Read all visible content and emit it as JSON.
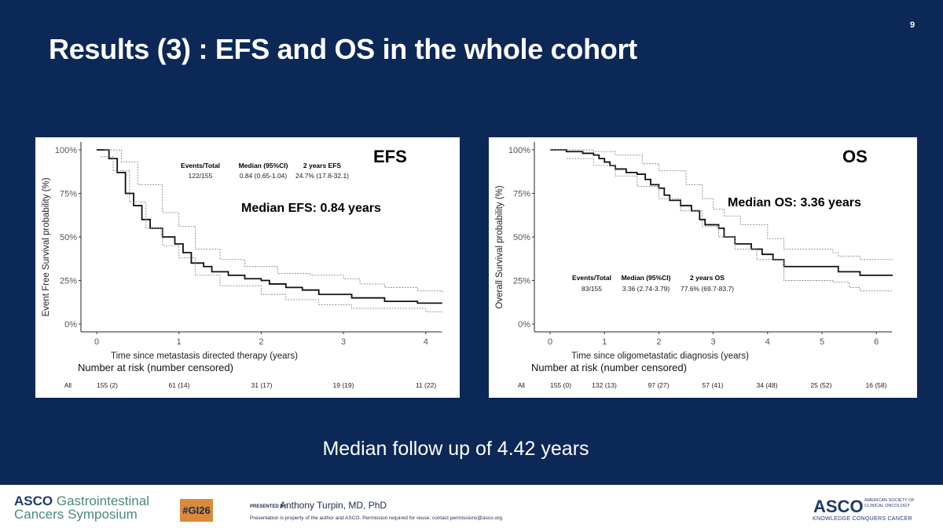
{
  "slide": {
    "title": "Results (3) : EFS and OS in the whole cohort",
    "page_number": "9",
    "followup": "Median follow up of  4.42 years",
    "background": "#0c2857"
  },
  "footer": {
    "logo_left_1": "ASCO",
    "logo_left_2": "Gastrointestinal",
    "logo_left_3": "Cancers Symposium",
    "hashtag": "#GI26",
    "presented_by": "PRESENTED BY:",
    "presenter": "Anthony Turpin, MD, PhD",
    "disclaimer": "Presentation is property of the author and ASCO. Permission required for reuse; contact permissions@asco.org.",
    "logo_right": "ASCO",
    "logo_right_sub": "AMERICAN SOCIETY OF CLINICAL ONCOLOGY",
    "logo_right_tagline": "KNOWLEDGE CONQUERS CANCER"
  },
  "chart_data": [
    {
      "type": "line",
      "label": "EFS",
      "annotation": "Median EFS: 0.84 years",
      "xlabel": "Time since metastasis directed therapy (years)",
      "ylabel": "Event Free Survival probability (%)",
      "xlim": [
        0,
        4.2
      ],
      "ylim": [
        0,
        100
      ],
      "xticks": [
        "0",
        "1",
        "2",
        "3",
        "4"
      ],
      "yticks": [
        "0%",
        "25%",
        "50%",
        "75%",
        "100%"
      ],
      "stats_headers": [
        "Events/Total",
        "Median (95%CI)",
        "2 years EFS"
      ],
      "stats_values": [
        "122/155",
        "0.84 (0.65-1.04)",
        "24.7% (17.8-32.1)"
      ],
      "risk_title": "Number at risk (number censored)",
      "risk_group": "All",
      "risk_table": [
        "155 (2)",
        "61 (14)",
        "31 (17)",
        "19 (19)",
        "11 (22)"
      ],
      "series": [
        {
          "role": "estimate",
          "x": [
            0,
            0.08,
            0.15,
            0.25,
            0.35,
            0.45,
            0.55,
            0.65,
            0.8,
            0.95,
            1.05,
            1.15,
            1.3,
            1.4,
            1.6,
            1.8,
            2.0,
            2.1,
            2.3,
            2.5,
            2.7,
            3.1,
            3.5,
            3.9,
            4.2
          ],
          "y": [
            100,
            100,
            95,
            87,
            75,
            68,
            60,
            55,
            50,
            46,
            41,
            35,
            33,
            30,
            28,
            26,
            25,
            23,
            21,
            19.5,
            17,
            15,
            13,
            12,
            12
          ]
        },
        {
          "role": "upper-ci",
          "x": [
            0.1,
            0.3,
            0.5,
            0.8,
            1.0,
            1.2,
            1.5,
            1.8,
            2.2,
            2.6,
            3.0,
            3.2,
            3.5,
            3.9,
            4.2
          ],
          "y": [
            100,
            93,
            80,
            64,
            56,
            43,
            37,
            33,
            29,
            28,
            26,
            23,
            21,
            19,
            18
          ]
        },
        {
          "role": "lower-ci",
          "x": [
            0.05,
            0.2,
            0.4,
            0.6,
            0.8,
            1.0,
            1.2,
            1.5,
            2.0,
            2.3,
            2.7,
            3.1,
            3.5,
            4.0,
            4.2
          ],
          "y": [
            96,
            88,
            70,
            55,
            45,
            38,
            28,
            22,
            17,
            14,
            11,
            9,
            9,
            7,
            7
          ]
        }
      ]
    },
    {
      "type": "line",
      "label": "OS",
      "annotation": "Median OS: 3.36 years",
      "xlabel": "Time since oligometastatic diagnosis (years)",
      "ylabel": "Overall Survival probability (%)",
      "xlim": [
        0,
        6.3
      ],
      "ylim": [
        0,
        100
      ],
      "xticks": [
        "0",
        "1",
        "2",
        "3",
        "4",
        "5",
        "6"
      ],
      "yticks": [
        "0%",
        "25%",
        "50%",
        "75%",
        "100%"
      ],
      "stats_headers": [
        "Events/Total",
        "Median (95%CI)",
        "2 years OS"
      ],
      "stats_values": [
        "83/155",
        "3.36 (2.74-3.79)",
        "77.6% (69.7-83.7)"
      ],
      "risk_title": "Number at risk (number censored)",
      "risk_group": "All",
      "risk_table": [
        "155 (0)",
        "132 (13)",
        "97 (27)",
        "57 (41)",
        "34 (48)",
        "25 (52)",
        "16 (58)"
      ],
      "series": [
        {
          "role": "estimate",
          "x": [
            0,
            0.3,
            0.6,
            0.8,
            0.9,
            1.0,
            1.1,
            1.2,
            1.4,
            1.6,
            1.75,
            1.85,
            2.0,
            2.1,
            2.2,
            2.4,
            2.6,
            2.75,
            2.85,
            3.1,
            3.2,
            3.4,
            3.7,
            3.9,
            4.1,
            4.3,
            5.2,
            5.3,
            5.7,
            6.3
          ],
          "y": [
            100,
            99,
            98,
            97,
            95,
            93,
            91,
            89,
            87,
            86,
            83,
            80,
            78,
            74,
            71,
            68,
            65,
            60,
            57,
            55,
            50,
            46,
            43,
            40,
            37,
            33,
            33,
            30,
            28,
            28
          ]
        },
        {
          "role": "upper-ci",
          "x": [
            0,
            0.8,
            1.2,
            1.7,
            2.0,
            2.5,
            2.8,
            3.0,
            3.2,
            3.5,
            4.0,
            4.3,
            5.2,
            5.3,
            5.7,
            6.3
          ],
          "y": [
            100,
            99,
            97,
            92,
            88,
            80,
            72,
            66,
            62,
            57,
            49,
            43,
            41,
            39,
            37,
            37
          ]
        },
        {
          "role": "lower-ci",
          "x": [
            0.3,
            0.8,
            1.2,
            1.6,
            2.0,
            2.4,
            2.8,
            3.1,
            3.4,
            3.8,
            4.3,
            5.2,
            5.5,
            5.7,
            6.3
          ],
          "y": [
            95,
            91,
            85,
            79,
            72,
            65,
            56,
            50,
            43,
            37,
            25,
            24,
            21,
            19,
            19
          ]
        }
      ]
    }
  ]
}
